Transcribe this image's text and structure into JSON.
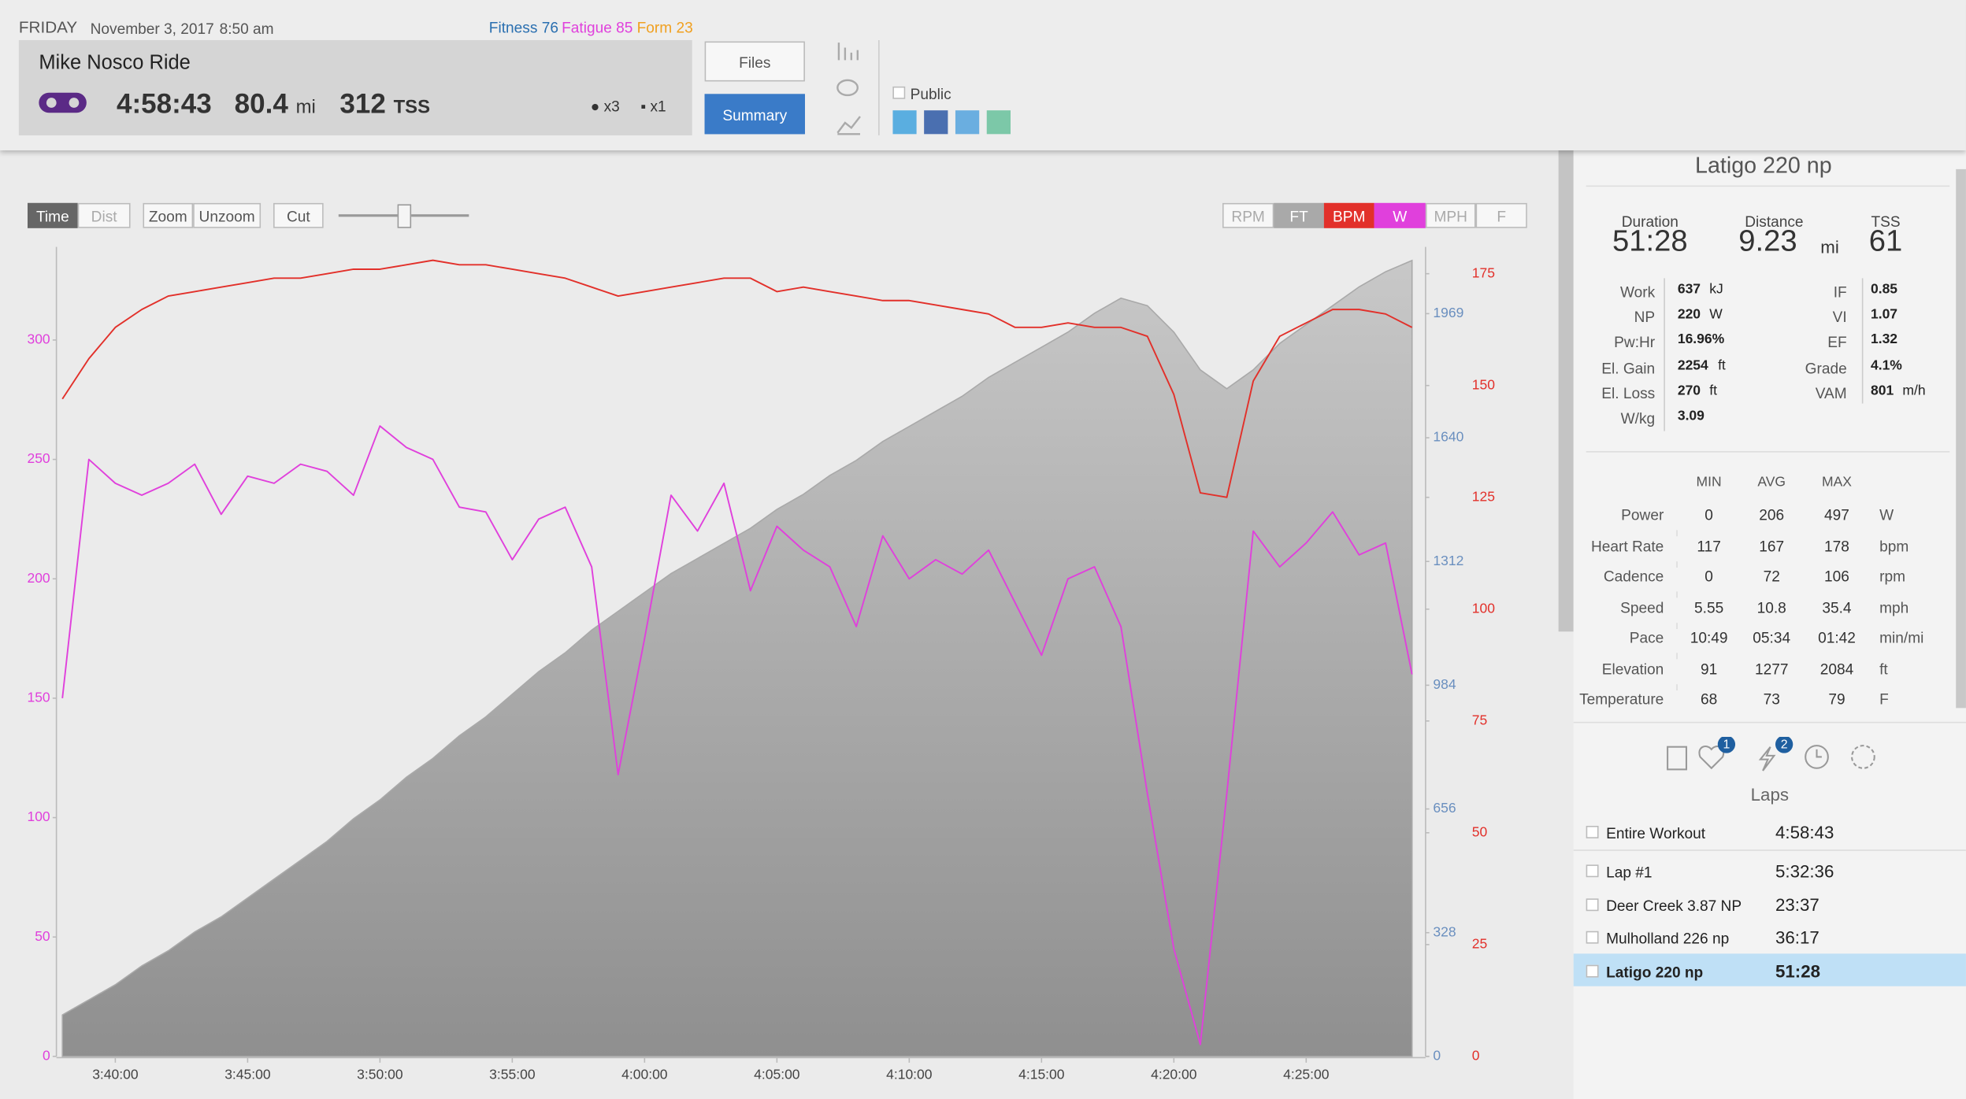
{
  "header": {
    "day": "FRIDAY",
    "date": "November 3, 2017",
    "time": "8:50 am",
    "fitness_label": "Fitness",
    "fitness": "76",
    "fatigue_label": "Fatigue",
    "fatigue": "85",
    "form_label": "Form",
    "form": "23"
  },
  "ride": {
    "title": "Mike Nosco Ride",
    "duration": "4:58:43",
    "distance": "80.4",
    "distance_unit": "mi",
    "tss": "312",
    "tss_unit": "TSS",
    "likes": "x3",
    "comments": "x1"
  },
  "buttons": {
    "files": "Files",
    "summary": "Summary",
    "public": "Public"
  },
  "chart_toolbar": {
    "time": "Time",
    "dist": "Dist",
    "zoom": "Zoom",
    "unzoom": "Unzoom",
    "cut": "Cut",
    "rpm": "RPM",
    "mph": "MPH",
    "f": "F"
  },
  "chart_data": {
    "type": "line",
    "x": [
      "3:38:00",
      "3:39:00",
      "3:40:00",
      "3:41:00",
      "3:42:00",
      "3:43:00",
      "3:44:00",
      "3:45:00",
      "3:46:00",
      "3:47:00",
      "3:48:00",
      "3:49:00",
      "3:50:00",
      "3:51:00",
      "3:52:00",
      "3:53:00",
      "3:54:00",
      "3:55:00",
      "3:56:00",
      "3:57:00",
      "3:58:00",
      "3:59:00",
      "4:00:00",
      "4:01:00",
      "4:02:00",
      "4:03:00",
      "4:04:00",
      "4:05:00",
      "4:06:00",
      "4:07:00",
      "4:08:00",
      "4:09:00",
      "4:10:00",
      "4:11:00",
      "4:12:00",
      "4:13:00",
      "4:14:00",
      "4:15:00",
      "4:16:00",
      "4:17:00",
      "4:18:00",
      "4:19:00",
      "4:20:00",
      "4:21:00",
      "4:22:00",
      "4:23:00",
      "4:24:00",
      "4:25:00",
      "4:26:00",
      "4:27:00",
      "4:28:00",
      "4:29:00"
    ],
    "xlim": [
      "3:37:55",
      "4:29:25"
    ],
    "xticks": [
      "3:40:00",
      "3:45:00",
      "3:50:00",
      "3:55:00",
      "4:00:00",
      "4:05:00",
      "4:10:00",
      "4:15:00",
      "4:20:00",
      "4:25:00"
    ],
    "ylim": [
      0,
      339
    ],
    "yticks": [
      0,
      50,
      100,
      150,
      200,
      250,
      300
    ],
    "y2lim": [
      0,
      181
    ],
    "y2ticks": [
      0,
      25,
      50,
      75,
      100,
      125,
      150,
      175
    ],
    "y3lim": [
      0,
      2146
    ],
    "y3ticks": [
      0,
      328,
      656,
      984,
      1312,
      1640,
      1969
    ],
    "series": [
      {
        "name": "FT",
        "color": "#a9a9a9",
        "axis": "y3",
        "values": [
          110,
          150,
          190,
          240,
          280,
          330,
          370,
          420,
          470,
          520,
          570,
          630,
          680,
          740,
          790,
          850,
          900,
          960,
          1020,
          1070,
          1130,
          1180,
          1230,
          1280,
          1320,
          1360,
          1400,
          1450,
          1490,
          1540,
          1580,
          1630,
          1670,
          1710,
          1750,
          1800,
          1840,
          1880,
          1920,
          1970,
          2010,
          1990,
          1920,
          1820,
          1770,
          1820,
          1890,
          1940,
          1990,
          2040,
          2080,
          2110
        ]
      },
      {
        "name": "BPM",
        "color": "#e2302a",
        "axis": "y2",
        "values": [
          147,
          156,
          163,
          167,
          170,
          171,
          172,
          173,
          174,
          174,
          175,
          176,
          176,
          177,
          178,
          177,
          177,
          176,
          175,
          174,
          172,
          170,
          171,
          172,
          173,
          174,
          174,
          171,
          172,
          171,
          170,
          169,
          169,
          168,
          167,
          166,
          163,
          163,
          164,
          163,
          163,
          161,
          148,
          126,
          125,
          151,
          161,
          164,
          167,
          167,
          166,
          163
        ]
      },
      {
        "name": "W",
        "color": "#e040dc",
        "axis": "y",
        "values": [
          150,
          250,
          240,
          235,
          240,
          248,
          227,
          243,
          240,
          248,
          245,
          235,
          264,
          255,
          250,
          230,
          228,
          208,
          225,
          230,
          205,
          118,
          175,
          235,
          220,
          240,
          195,
          222,
          212,
          205,
          180,
          218,
          200,
          208,
          202,
          212,
          190,
          168,
          200,
          205,
          180,
          110,
          45,
          5,
          110,
          220,
          205,
          215,
          228,
          210,
          215,
          160
        ]
      }
    ]
  },
  "lap_panel": {
    "title": "Latigo 220 np",
    "summary": [
      {
        "label": "Duration",
        "value": "51:28"
      },
      {
        "label": "Distance",
        "value": "9.23",
        "unit": "mi"
      },
      {
        "label": "TSS",
        "value": "61"
      }
    ],
    "metrics_left": [
      {
        "label": "Work",
        "value": "637",
        "unit": "kJ"
      },
      {
        "label": "NP",
        "value": "220",
        "unit": "W"
      },
      {
        "label": "Pw:Hr",
        "value": "16.96%"
      },
      {
        "label": "El. Gain",
        "value": "2254",
        "unit": "ft"
      },
      {
        "label": "El. Loss",
        "value": "270",
        "unit": "ft"
      },
      {
        "label": "W/kg",
        "value": "3.09"
      }
    ],
    "metrics_right": [
      {
        "label": "IF",
        "value": "0.85"
      },
      {
        "label": "VI",
        "value": "1.07"
      },
      {
        "label": "EF",
        "value": "1.32"
      },
      {
        "label": "Grade",
        "value": "4.1%"
      },
      {
        "label": "VAM",
        "value": "801",
        "unit": "m/h"
      }
    ],
    "range_headers": [
      "MIN",
      "AVG",
      "MAX"
    ],
    "range_rows": [
      {
        "label": "Power",
        "min": "0",
        "avg": "206",
        "max": "497",
        "unit": "W"
      },
      {
        "label": "Heart Rate",
        "min": "117",
        "avg": "167",
        "max": "178",
        "unit": "bpm"
      },
      {
        "label": "Cadence",
        "min": "0",
        "avg": "72",
        "max": "106",
        "unit": "rpm"
      },
      {
        "label": "Speed",
        "min": "5.55",
        "avg": "10.8",
        "max": "35.4",
        "unit": "mph"
      },
      {
        "label": "Pace",
        "min": "10:49",
        "avg": "05:34",
        "max": "01:42",
        "unit": "min/mi"
      },
      {
        "label": "Elevation",
        "min": "91",
        "avg": "1277",
        "max": "2084",
        "unit": "ft"
      },
      {
        "label": "Temperature",
        "min": "68",
        "avg": "73",
        "max": "79",
        "unit": "F"
      }
    ],
    "badges": [
      "1",
      "2"
    ],
    "laps_title": "Laps",
    "laps": [
      {
        "name": "Entire Workout",
        "time": "4:58:43"
      },
      {
        "name": "Lap #1",
        "time": "5:32:36"
      },
      {
        "name": "Deer Creek 3.87 NP",
        "time": "23:37"
      },
      {
        "name": "Mulholland 226 np",
        "time": "36:17"
      },
      {
        "name": "Latigo 220 np",
        "time": "51:28"
      }
    ]
  }
}
